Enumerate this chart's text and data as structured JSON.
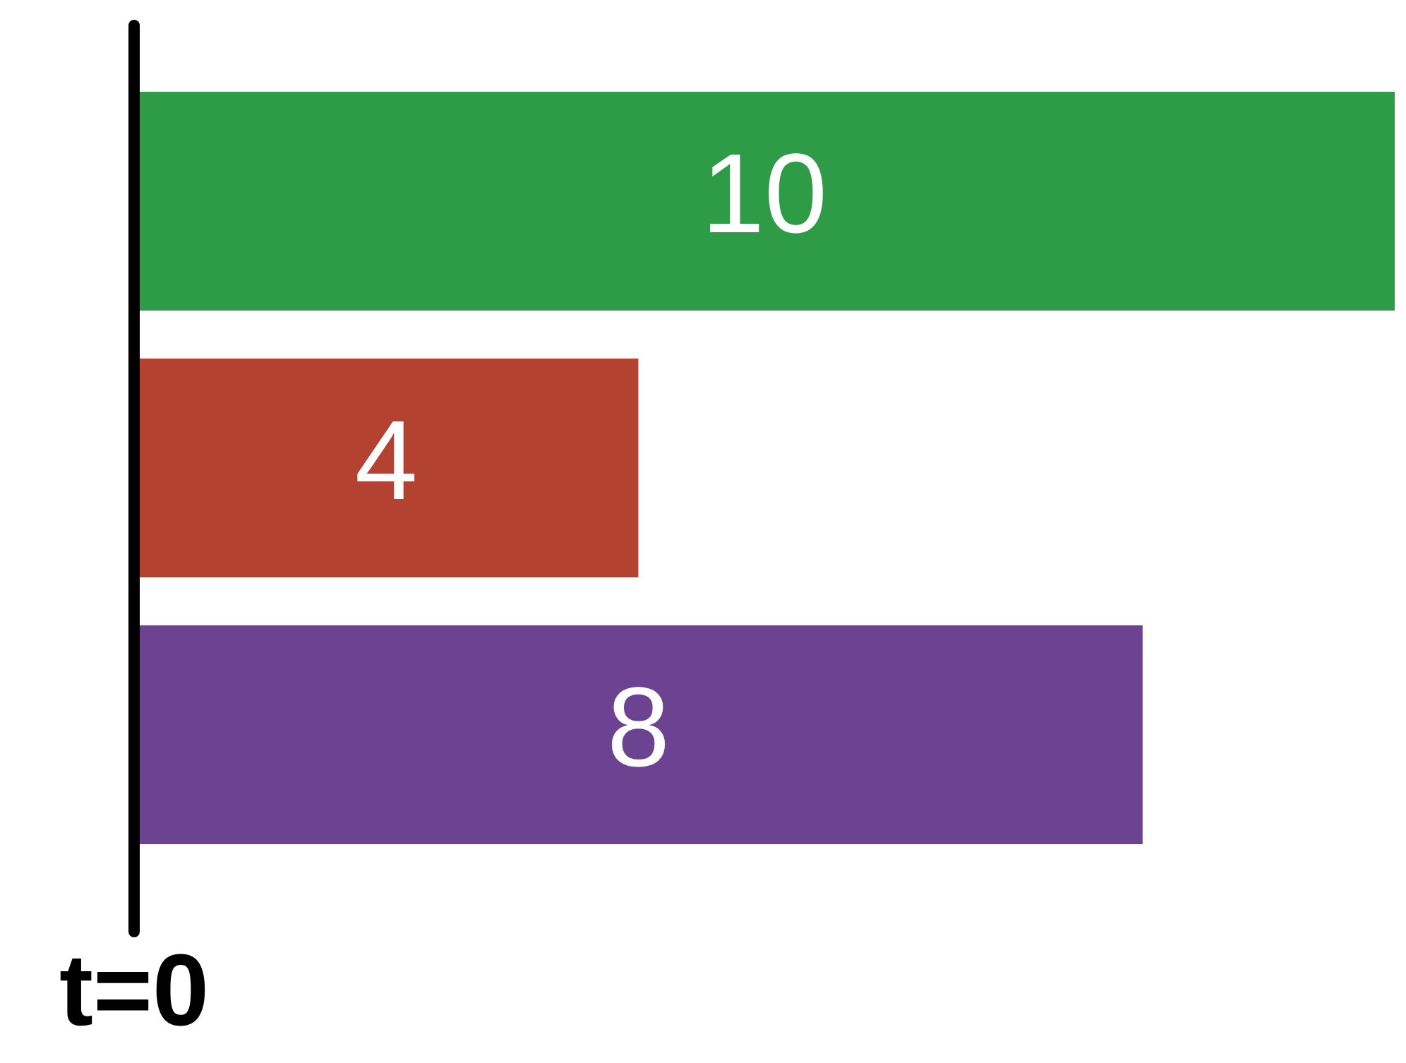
{
  "chart_data": {
    "type": "bar",
    "orientation": "horizontal",
    "categories": [
      null,
      null,
      null
    ],
    "values": [
      10,
      4,
      8
    ],
    "colors": [
      "#2e9b47",
      "#b34230",
      "#6b4391"
    ],
    "xlim": [
      0,
      10
    ],
    "data_labels": true,
    "legend": false,
    "ref_lines": [
      {
        "axis": "x",
        "value": 0,
        "label": "t=0",
        "color": "#000000"
      }
    ]
  }
}
